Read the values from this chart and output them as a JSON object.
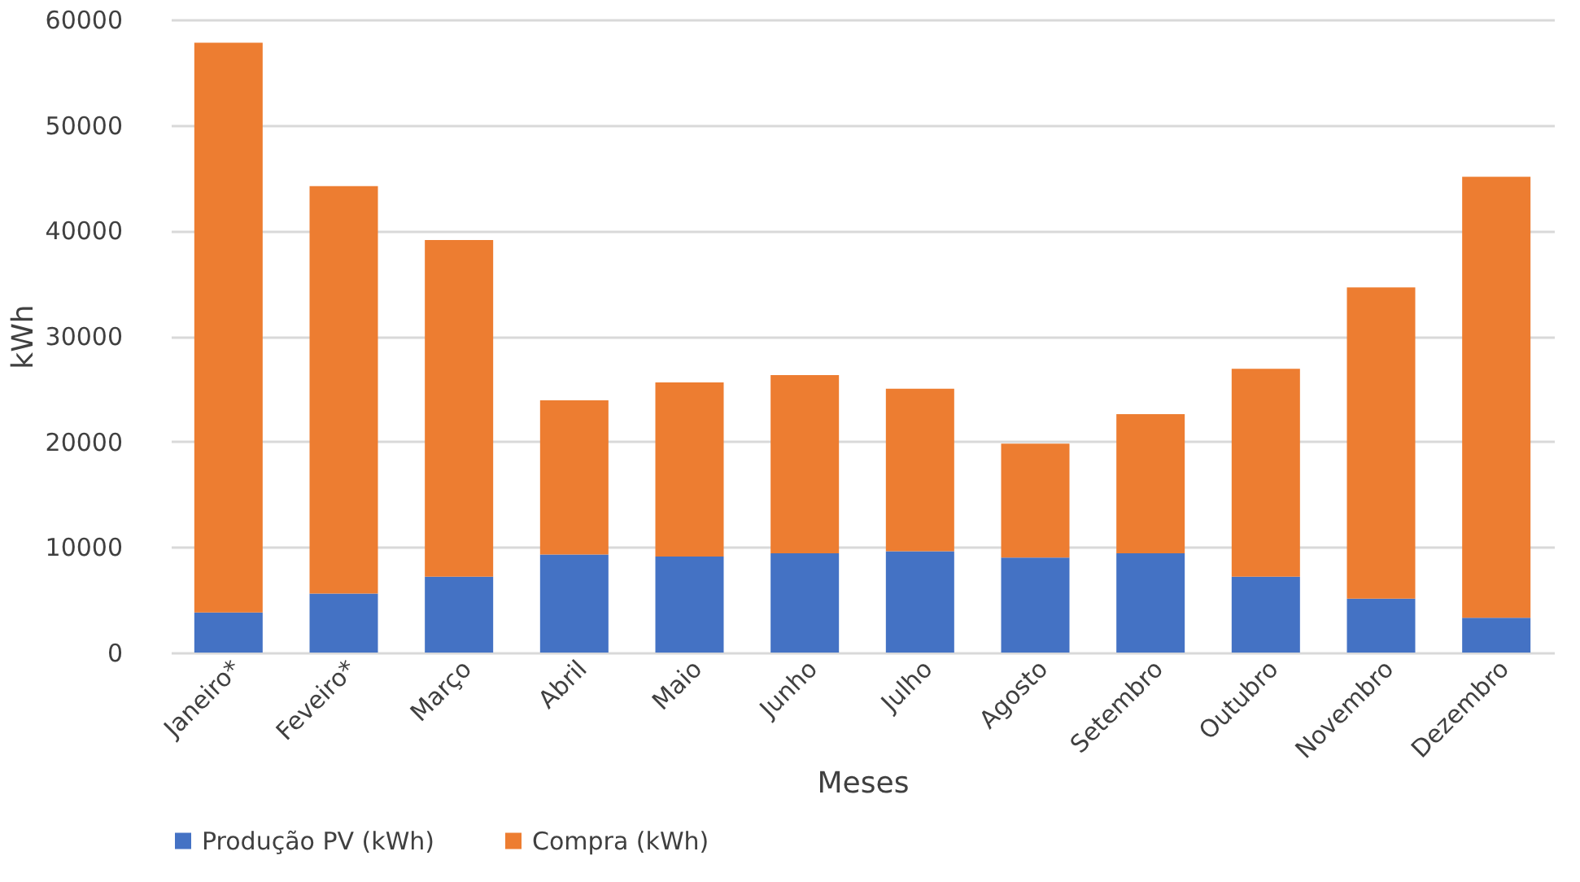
{
  "chart_data": {
    "type": "bar",
    "stacked": true,
    "xlabel": "Meses",
    "ylabel": "kWh",
    "categories": [
      "Janeiro*",
      "Feveiro*",
      "Março",
      "Abril",
      "Maio",
      "Junho",
      "Julho",
      "Agosto",
      "Setembro",
      "Outubro",
      "Novembro",
      "Dezembro"
    ],
    "series": [
      {
        "name": "Produção PV (kWh)",
        "color": "#4472c4",
        "values": [
          3800,
          5600,
          7200,
          9300,
          9100,
          9400,
          9600,
          9000,
          9400,
          7200,
          5100,
          3300
        ]
      },
      {
        "name": "Compra (kWh)",
        "color": "#ed7d31",
        "values": [
          54000,
          38600,
          31900,
          14600,
          16500,
          16900,
          15400,
          10800,
          13200,
          19700,
          29500,
          41800
        ]
      }
    ],
    "ylim": [
      0,
      60000
    ],
    "yticks": [
      0,
      10000,
      20000,
      30000,
      40000,
      50000,
      60000
    ],
    "grid": "y",
    "legend": "bottom"
  }
}
